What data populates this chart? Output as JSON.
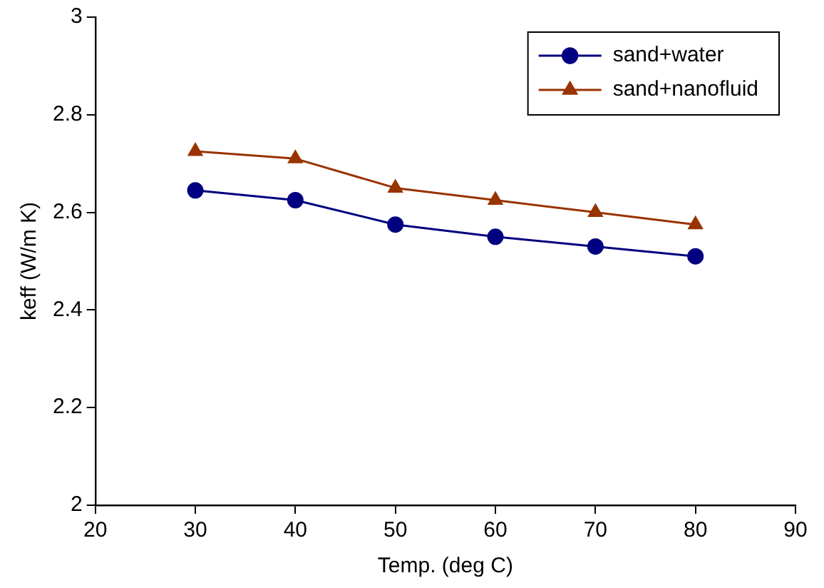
{
  "chart_data": {
    "type": "line",
    "xlabel": "Temp. (deg C)",
    "ylabel": "keff (W/m K)",
    "x": [
      30,
      40,
      50,
      60,
      70,
      80
    ],
    "series": [
      {
        "name": "sand+water",
        "color": "#000080",
        "marker": "circle",
        "values": [
          2.645,
          2.625,
          2.575,
          2.55,
          2.53,
          2.51
        ]
      },
      {
        "name": "sand+nanofluid",
        "color": "#993300",
        "marker": "triangle",
        "values": [
          2.725,
          2.71,
          2.65,
          2.625,
          2.6,
          2.575
        ]
      }
    ],
    "xlim": [
      20,
      90
    ],
    "xticks": [
      20,
      30,
      40,
      50,
      60,
      70,
      80,
      90
    ],
    "ylim": [
      2,
      3
    ],
    "yticks": [
      2,
      {
        "value": 2.2,
        "label": "2.2"
      },
      {
        "value": 2.4,
        "label": "2.4"
      },
      {
        "value": 2.6,
        "label": "2.6"
      },
      {
        "value": 2.8,
        "label": "2.8"
      },
      3
    ],
    "grid": false,
    "legend": "top right"
  }
}
